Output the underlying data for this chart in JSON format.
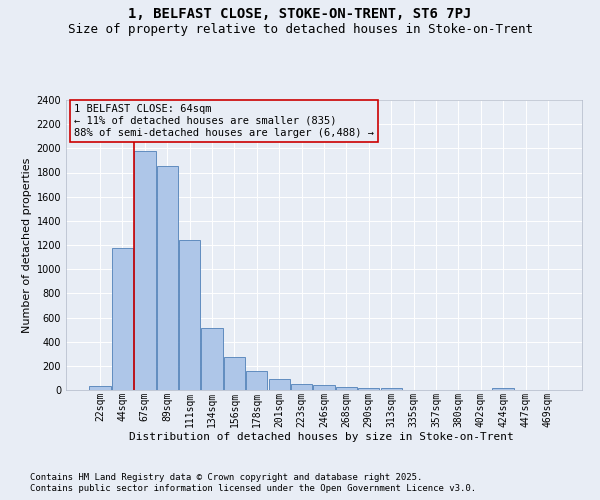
{
  "title": "1, BELFAST CLOSE, STOKE-ON-TRENT, ST6 7PJ",
  "subtitle": "Size of property relative to detached houses in Stoke-on-Trent",
  "xlabel": "Distribution of detached houses by size in Stoke-on-Trent",
  "ylabel": "Number of detached properties",
  "categories": [
    "22sqm",
    "44sqm",
    "67sqm",
    "89sqm",
    "111sqm",
    "134sqm",
    "156sqm",
    "178sqm",
    "201sqm",
    "223sqm",
    "246sqm",
    "268sqm",
    "290sqm",
    "313sqm",
    "335sqm",
    "357sqm",
    "380sqm",
    "402sqm",
    "424sqm",
    "447sqm",
    "469sqm"
  ],
  "values": [
    30,
    1175,
    1975,
    1850,
    1240,
    515,
    275,
    155,
    90,
    50,
    40,
    25,
    20,
    15,
    0,
    0,
    0,
    0,
    20,
    0,
    0
  ],
  "bar_color": "#aec6e8",
  "bar_edge_color": "#5080b8",
  "background_color": "#e8edf5",
  "grid_color": "#ffffff",
  "vline_color": "#cc0000",
  "annotation_text": "1 BELFAST CLOSE: 64sqm\n← 11% of detached houses are smaller (835)\n88% of semi-detached houses are larger (6,488) →",
  "annotation_box_color": "#cc0000",
  "ylim": [
    0,
    2400
  ],
  "yticks": [
    0,
    200,
    400,
    600,
    800,
    1000,
    1200,
    1400,
    1600,
    1800,
    2000,
    2200,
    2400
  ],
  "footer1": "Contains HM Land Registry data © Crown copyright and database right 2025.",
  "footer2": "Contains public sector information licensed under the Open Government Licence v3.0.",
  "title_fontsize": 10,
  "subtitle_fontsize": 9,
  "axis_label_fontsize": 8,
  "tick_fontsize": 7,
  "annotation_fontsize": 7.5,
  "footer_fontsize": 6.5
}
